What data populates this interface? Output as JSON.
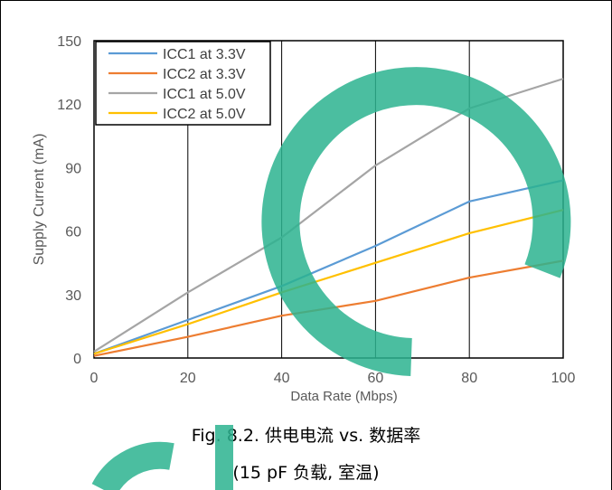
{
  "chart_data": {
    "type": "line",
    "x": [
      0,
      20,
      40,
      60,
      80,
      100
    ],
    "xlabel": "Data Rate (Mbps)",
    "ylabel": "Supply Current (mA)",
    "xlim": [
      0,
      100
    ],
    "ylim": [
      0,
      150
    ],
    "xticks": [
      0,
      20,
      40,
      60,
      80,
      100
    ],
    "yticks": [
      0,
      30,
      60,
      90,
      120,
      150
    ],
    "grid": "vertical",
    "legend_position": "top-left",
    "series": [
      {
        "name": "ICC1 at 3.3V",
        "color": "#5B9BD5",
        "values": [
          2,
          18,
          34,
          53,
          74,
          84
        ]
      },
      {
        "name": "ICC2 at 3.3V",
        "color": "#ED7D31",
        "values": [
          1,
          10,
          20,
          27,
          38,
          46
        ]
      },
      {
        "name": "ICC1 at 5.0V",
        "color": "#A5A5A5",
        "values": [
          3,
          31,
          57,
          91,
          118,
          132
        ]
      },
      {
        "name": "ICC2 at 5.0V",
        "color": "#FFC000",
        "values": [
          2,
          16,
          31,
          45,
          59,
          70
        ]
      }
    ]
  },
  "caption": {
    "line1": "Fig. 8.2. 供电电流 vs. 数据率",
    "line2": "(15 pF 负载, 室温)"
  },
  "watermark": {
    "color": "#2BB38F"
  }
}
